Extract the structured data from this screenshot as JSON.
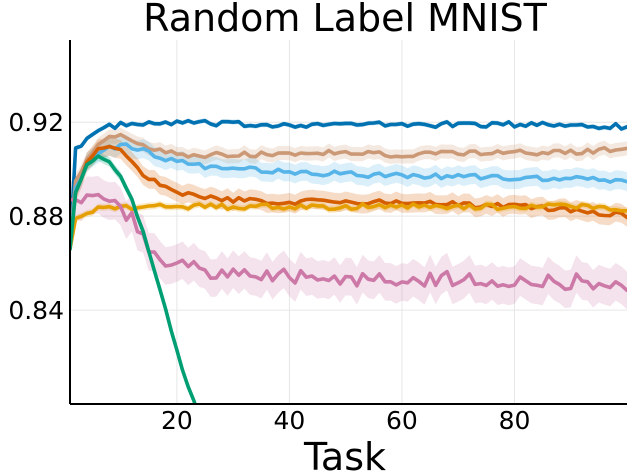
{
  "chart_data": {
    "type": "line",
    "title": "Random Label MNIST",
    "xlabel": "Task",
    "ylabel": "",
    "xlim": [
      1,
      100
    ],
    "ylim": [
      0.8,
      0.955
    ],
    "x_ticks": [
      20,
      40,
      60,
      80
    ],
    "y_ticks": [
      0.84,
      0.88,
      0.92
    ],
    "y_tick_labels": [
      "0.84",
      "0.88",
      "0.92"
    ],
    "grid": true,
    "legend": "none",
    "series": [
      {
        "color": "#0072B2",
        "band": 0.001,
        "points": [
          [
            1,
            0.866
          ],
          [
            2,
            0.909
          ],
          [
            4,
            0.913
          ],
          [
            6,
            0.916
          ],
          [
            8,
            0.918
          ],
          [
            10,
            0.919
          ],
          [
            15,
            0.919
          ],
          [
            20,
            0.92
          ],
          [
            30,
            0.919
          ],
          [
            40,
            0.919
          ],
          [
            50,
            0.919
          ],
          [
            60,
            0.919
          ],
          [
            70,
            0.919
          ],
          [
            80,
            0.919
          ],
          [
            90,
            0.919
          ],
          [
            100,
            0.918
          ]
        ]
      },
      {
        "color": "#CC9977",
        "band": 0.003,
        "points": [
          [
            1,
            0.868
          ],
          [
            2,
            0.895
          ],
          [
            4,
            0.905
          ],
          [
            6,
            0.91
          ],
          [
            8,
            0.913
          ],
          [
            10,
            0.914
          ],
          [
            12,
            0.912
          ],
          [
            15,
            0.909
          ],
          [
            20,
            0.906
          ],
          [
            25,
            0.906
          ],
          [
            30,
            0.906
          ],
          [
            40,
            0.907
          ],
          [
            50,
            0.907
          ],
          [
            60,
            0.906
          ],
          [
            70,
            0.907
          ],
          [
            80,
            0.907
          ],
          [
            90,
            0.907
          ],
          [
            100,
            0.909
          ]
        ]
      },
      {
        "color": "#56B4E9",
        "band": 0.004,
        "points": [
          [
            1,
            0.869
          ],
          [
            2,
            0.892
          ],
          [
            4,
            0.902
          ],
          [
            6,
            0.906
          ],
          [
            8,
            0.909
          ],
          [
            10,
            0.91
          ],
          [
            12,
            0.909
          ],
          [
            15,
            0.907
          ],
          [
            20,
            0.903
          ],
          [
            25,
            0.901
          ],
          [
            30,
            0.9
          ],
          [
            40,
            0.899
          ],
          [
            50,
            0.898
          ],
          [
            60,
            0.897
          ],
          [
            70,
            0.897
          ],
          [
            80,
            0.896
          ],
          [
            90,
            0.896
          ],
          [
            100,
            0.895
          ]
        ]
      },
      {
        "color": "#D55E00",
        "band": 0.004,
        "points": [
          [
            1,
            0.867
          ],
          [
            2,
            0.89
          ],
          [
            4,
            0.903
          ],
          [
            6,
            0.908
          ],
          [
            8,
            0.909
          ],
          [
            10,
            0.908
          ],
          [
            12,
            0.904
          ],
          [
            14,
            0.898
          ],
          [
            17,
            0.893
          ],
          [
            20,
            0.89
          ],
          [
            25,
            0.888
          ],
          [
            30,
            0.887
          ],
          [
            40,
            0.886
          ],
          [
            50,
            0.886
          ],
          [
            60,
            0.886
          ],
          [
            70,
            0.885
          ],
          [
            80,
            0.884
          ],
          [
            90,
            0.883
          ],
          [
            100,
            0.88
          ]
        ]
      },
      {
        "color": "#E69F00",
        "band": 0.0015,
        "points": [
          [
            1,
            0.866
          ],
          [
            2,
            0.879
          ],
          [
            4,
            0.882
          ],
          [
            6,
            0.883
          ],
          [
            10,
            0.884
          ],
          [
            20,
            0.884
          ],
          [
            30,
            0.884
          ],
          [
            40,
            0.884
          ],
          [
            50,
            0.884
          ],
          [
            60,
            0.884
          ],
          [
            70,
            0.884
          ],
          [
            80,
            0.884
          ],
          [
            90,
            0.884
          ],
          [
            100,
            0.883
          ]
        ]
      },
      {
        "color": "#CC79A7",
        "band": 0.008,
        "points": [
          [
            1,
            0.887
          ],
          [
            4,
            0.887
          ],
          [
            7,
            0.886
          ],
          [
            10,
            0.884
          ],
          [
            12,
            0.879
          ],
          [
            14,
            0.871
          ],
          [
            16,
            0.865
          ],
          [
            18,
            0.861
          ],
          [
            20,
            0.86
          ],
          [
            25,
            0.857
          ],
          [
            30,
            0.855
          ],
          [
            40,
            0.854
          ],
          [
            50,
            0.853
          ],
          [
            60,
            0.853
          ],
          [
            70,
            0.853
          ],
          [
            80,
            0.853
          ],
          [
            90,
            0.852
          ],
          [
            100,
            0.851
          ]
        ]
      },
      {
        "color": "#009E73",
        "band": 0.002,
        "points": [
          [
            1,
            0.866
          ],
          [
            2,
            0.89
          ],
          [
            4,
            0.902
          ],
          [
            6,
            0.905
          ],
          [
            8,
            0.903
          ],
          [
            10,
            0.897
          ],
          [
            12,
            0.887
          ],
          [
            14,
            0.873
          ],
          [
            16,
            0.857
          ],
          [
            18,
            0.84
          ],
          [
            20,
            0.823
          ],
          [
            22,
            0.807
          ],
          [
            24,
            0.795
          ],
          [
            26,
            0.785
          ]
        ]
      }
    ]
  }
}
